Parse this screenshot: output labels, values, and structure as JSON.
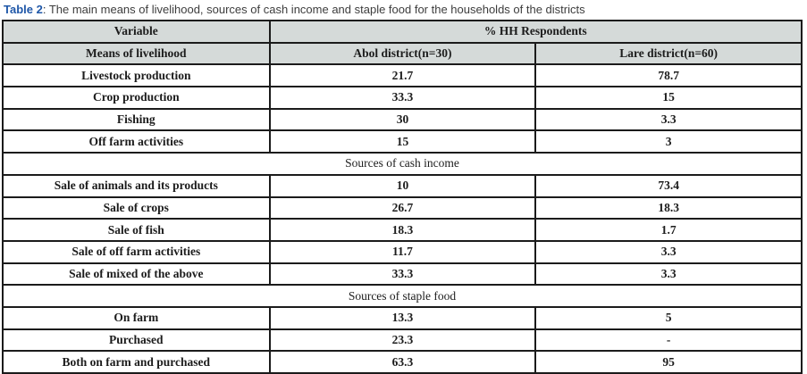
{
  "caption": {
    "label": "Table 2",
    "text": ": The main means of livelihood, sources of cash income and staple food for the households of the districts"
  },
  "colors": {
    "caption_accent": "#1f57a8",
    "caption_text": "#3d3d3d",
    "header_bg": "#d5dad9",
    "border": "#1b1b1b",
    "cell_text": "#1c1c1c"
  },
  "table": {
    "header_row1": {
      "variable": "Variable",
      "hh_respondents": "% HH Respondents"
    },
    "header_row2": {
      "means_of_livelihood": "Means of livelihood",
      "abol": "Abol district(n=30)",
      "lare": "Lare district(n=60)"
    },
    "sections": [
      {
        "heading": null,
        "rows": [
          {
            "label": "Livestock production",
            "abol": "21.7",
            "lare": "78.7"
          },
          {
            "label": "Crop production",
            "abol": "33.3",
            "lare": "15"
          },
          {
            "label": "Fishing",
            "abol": "30",
            "lare": "3.3"
          },
          {
            "label": "Off farm activities",
            "abol": "15",
            "lare": "3"
          }
        ]
      },
      {
        "heading": "Sources of cash income",
        "rows": [
          {
            "label": "Sale of animals and its products",
            "abol": "10",
            "lare": "73.4"
          },
          {
            "label": "Sale of crops",
            "abol": "26.7",
            "lare": "18.3"
          },
          {
            "label": "Sale of fish",
            "abol": "18.3",
            "lare": "1.7"
          },
          {
            "label": "Sale of off farm activities",
            "abol": "11.7",
            "lare": "3.3"
          },
          {
            "label": "Sale of mixed of the above",
            "abol": "33.3",
            "lare": "3.3"
          }
        ]
      },
      {
        "heading": "Sources of staple food",
        "rows": [
          {
            "label": "On farm",
            "abol": "13.3",
            "lare": "5"
          },
          {
            "label": "Purchased",
            "abol": "23.3",
            "lare": "-"
          },
          {
            "label": "Both on farm and purchased",
            "abol": "63.3",
            "lare": "95"
          }
        ]
      }
    ]
  }
}
